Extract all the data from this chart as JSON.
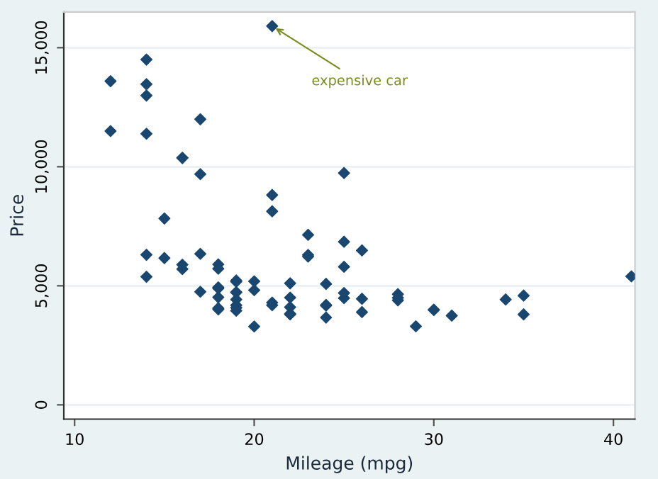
{
  "chart_data": {
    "type": "scatter",
    "xlabel": "Mileage (mpg)",
    "ylabel": "Price",
    "x": [
      22,
      17,
      22,
      20,
      15,
      26,
      20,
      16,
      19,
      14,
      14,
      21,
      29,
      16,
      22,
      22,
      24,
      19,
      30,
      18,
      16,
      17,
      28,
      21,
      12,
      12,
      14,
      22,
      14,
      15,
      18,
      14,
      20,
      21,
      19,
      19,
      18,
      19,
      24,
      16,
      28,
      34,
      25,
      26,
      18,
      18,
      19,
      19,
      19,
      24,
      17,
      23,
      25,
      23,
      35,
      24,
      21,
      21,
      25,
      28,
      30,
      14,
      26,
      35,
      18,
      31,
      18,
      23,
      41,
      25,
      25,
      17
    ],
    "series": [
      {
        "color": "#1a476f",
        "values": [
          4099,
          4749,
          3799,
          4816,
          7827,
          4453,
          5189,
          10372,
          4082,
          11385,
          14500,
          15906,
          3299,
          5705,
          4504,
          5104,
          3667,
          3955,
          3984,
          4010,
          5886,
          6342,
          4389,
          4187,
          11497,
          13594,
          13466,
          3829,
          5379,
          6165,
          4516,
          6303,
          3291,
          8814,
          5172,
          4733,
          4890,
          4181,
          4195,
          10371,
          4647,
          4425,
          4482,
          6486,
          4060,
          4934,
          5222,
          4723,
          4424,
          4172,
          9690,
          6295,
          9735,
          6229,
          4589,
          5079,
          8129,
          4296,
          5799,
          4499,
          3995,
          12990,
          3895,
          3798,
          5899,
          3748,
          5719,
          7140,
          5397,
          4697,
          6850,
          11995
        ]
      }
    ],
    "marker": "diamond",
    "grid": "y",
    "xlim": [
      9.4,
      41.2
    ],
    "xticks": [
      10,
      20,
      30,
      40
    ],
    "ylim": [
      -600,
      16500
    ],
    "yticks": [
      0,
      {
        "value": 5000,
        "label": "5,000"
      },
      {
        "value": 10000,
        "label": "10,000"
      },
      {
        "value": 15000,
        "label": "15,000"
      }
    ],
    "annotations": [
      {
        "text": "expensive car",
        "x": 21,
        "y": 15906
      }
    ]
  }
}
